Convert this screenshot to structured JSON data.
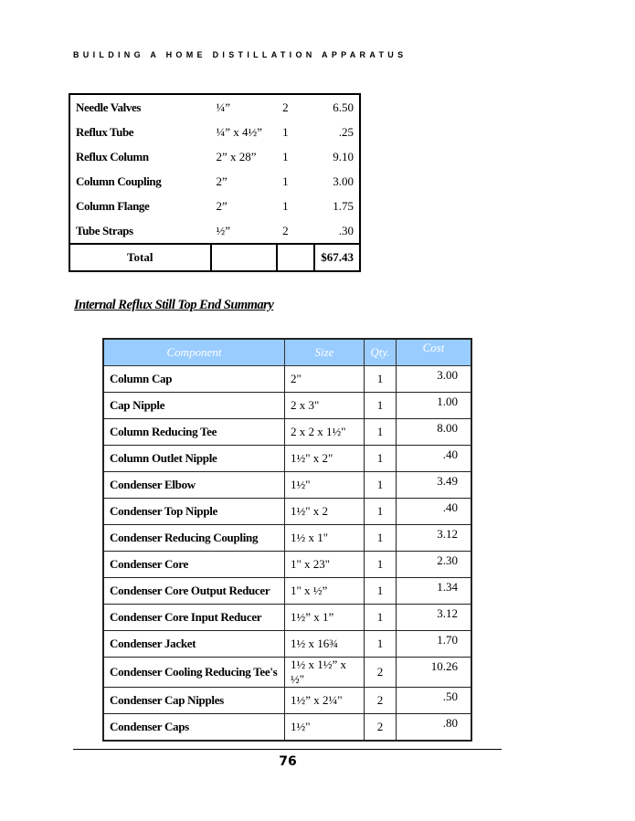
{
  "running_head": "BUILDING A HOME DISTILLATION APPARATUS",
  "parts_table": {
    "rows": [
      {
        "name": "Needle Valves",
        "size": "¼”",
        "qty": "2",
        "cost": "6.50"
      },
      {
        "name": "Reflux Tube",
        "size": "¼” x 4½”",
        "qty": "1",
        "cost": ".25"
      },
      {
        "name": "Reflux Column",
        "size": "2” x 28”",
        "qty": "1",
        "cost": "9.10"
      },
      {
        "name": "Column Coupling",
        "size": "2”",
        "qty": "1",
        "cost": "3.00"
      },
      {
        "name": "Column Flange",
        "size": "2”",
        "qty": "1",
        "cost": "1.75"
      },
      {
        "name": "Tube Straps",
        "size": "½”",
        "qty": "2",
        "cost": ".30"
      }
    ],
    "total_label": "Total",
    "total_value": "$67.43"
  },
  "section_heading": "Internal Reflux Still Top End Summary",
  "summary_table": {
    "header_color": "#99ccff",
    "headers": [
      "Component",
      "Size",
      "Qty.",
      "Cost"
    ],
    "rows": [
      {
        "name": "Column Cap",
        "size": "2\"",
        "qty": "1",
        "cost": "3.00"
      },
      {
        "name": "Cap Nipple",
        "size": "2 x 3\"",
        "qty": "1",
        "cost": "1.00"
      },
      {
        "name": "Column Reducing Tee",
        "size": "2 x 2 x 1½\"",
        "qty": "1",
        "cost": "8.00"
      },
      {
        "name": "Column Outlet Nipple",
        "size": "1½\" x 2\"",
        "qty": "1",
        "cost": ".40"
      },
      {
        "name": "Condenser Elbow",
        "size": "1½\"",
        "qty": "1",
        "cost": "3.49"
      },
      {
        "name": "Condenser Top Nipple",
        "size": "1½\" x 2",
        "qty": "1",
        "cost": ".40"
      },
      {
        "name": "Condenser Reducing Coupling",
        "size": "1½ x 1\"",
        "qty": "1",
        "cost": "3.12"
      },
      {
        "name": "Condenser Core",
        "size": "1\" x 23\"",
        "qty": "1",
        "cost": "2.30"
      },
      {
        "name": "Condenser Core Output Reducer",
        "size": "1\" x ½”",
        "qty": "1",
        "cost": "1.34"
      },
      {
        "name": "Condenser Core Input Reducer",
        "size": "1½” x 1”",
        "qty": "1",
        "cost": "3.12"
      },
      {
        "name": "Condenser Jacket",
        "size": "1½ x 16¾",
        "qty": "1",
        "cost": "1.70"
      },
      {
        "name": "Condenser Cooling Reducing Tee's",
        "size": "1½ x 1½” x ½\"",
        "qty": "2",
        "cost": "10.26"
      },
      {
        "name": "Condenser Cap Nipples",
        "size": "1½” x 2¼\"",
        "qty": "2",
        "cost": ".50"
      },
      {
        "name": "Condenser Caps",
        "size": "1½\"",
        "qty": "2",
        "cost": ".80"
      }
    ]
  },
  "page_number": "76"
}
